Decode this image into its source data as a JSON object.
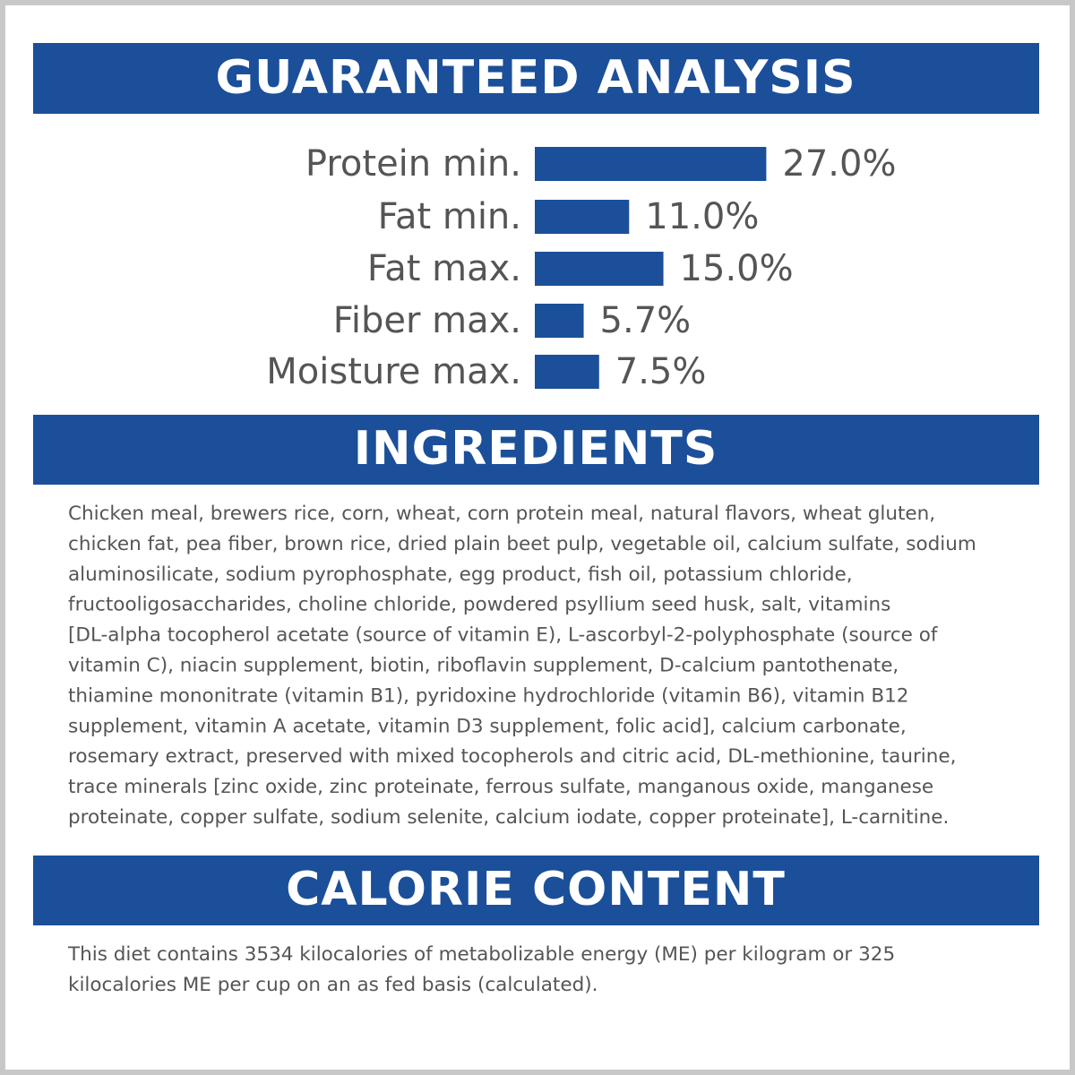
{
  "chart_data": {
    "type": "bar",
    "title": "GUARANTEED ANALYSIS",
    "categories": [
      "Protein min.",
      "Fat min.",
      "Fat max.",
      "Fiber max.",
      "Moisture max."
    ],
    "values": [
      27.0,
      11.0,
      15.0,
      5.7,
      7.5
    ],
    "value_labels": [
      "27.0%",
      "11.0%",
      "15.0%",
      "5.7%",
      "7.5%"
    ],
    "color": "#1b4f9a"
  },
  "ingredients": {
    "title": "INGREDIENTS",
    "lines": [
      "Chicken meal, brewers rice, corn, wheat, corn protein meal, natural flavors, wheat gluten,",
      "chicken fat, pea fiber, brown rice, dried plain beet pulp, vegetable oil, calcium sulfate, sodium",
      "aluminosilicate, sodium pyrophosphate, egg product, fish oil, potassium chloride,",
      "fructooligosaccharides, choline chloride, powdered psyllium seed husk, salt, vitamins",
      "[DL-alpha tocopherol acetate (source of vitamin E), L-ascorbyl-2-polyphosphate (source of",
      "vitamin C), niacin supplement, biotin, riboflavin supplement, D-calcium pantothenate,",
      "thiamine mononitrate (vitamin B1), pyridoxine hydrochloride (vitamin B6), vitamin B12",
      "supplement, vitamin A acetate, vitamin D3 supplement, folic acid], calcium carbonate,",
      "rosemary extract, preserved with mixed tocopherols and citric acid, DL-methionine, taurine,",
      "trace minerals [zinc oxide, zinc proteinate, ferrous sulfate, manganous oxide, manganese",
      "proteinate, copper sulfate, sodium selenite, calcium iodate, copper proteinate], L-carnitine."
    ]
  },
  "calorie_content": {
    "title": "CALORIE CONTENT",
    "lines": [
      "This diet contains 3534 kilocalories of metabolizable energy (ME) per kilogram or 325",
      "kilocalories ME per cup on an as fed basis (calculated)."
    ]
  }
}
